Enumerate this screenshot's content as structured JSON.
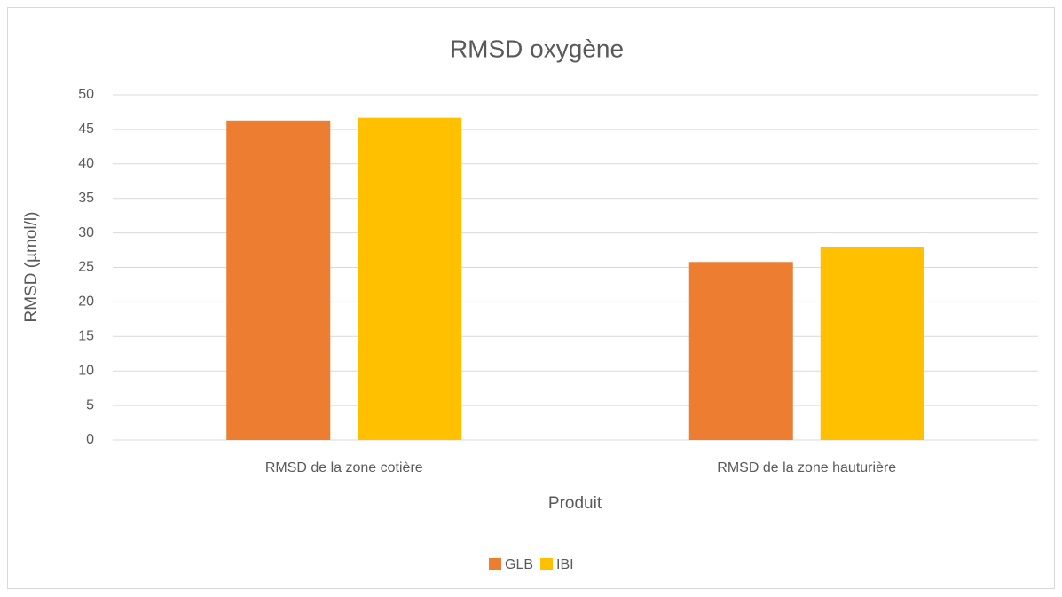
{
  "chart_data": {
    "type": "bar",
    "title": "RMSD oxygène",
    "x_label": "Produit",
    "y_label": "RMSD (µmol/l)",
    "categories": [
      "RMSD de la zone cotière",
      "RMSD de la zone hauturière"
    ],
    "series": [
      {
        "name": "GLB",
        "color": "#ed7d31",
        "values": [
          46.3,
          25.8
        ]
      },
      {
        "name": "IBI",
        "color": "#ffc000",
        "values": [
          46.7,
          27.9
        ]
      }
    ],
    "ylim": [
      0,
      50
    ],
    "yticks": [
      0,
      5,
      10,
      15,
      20,
      25,
      30,
      35,
      40,
      45,
      50
    ],
    "grid": true,
    "legend": "bottom"
  }
}
